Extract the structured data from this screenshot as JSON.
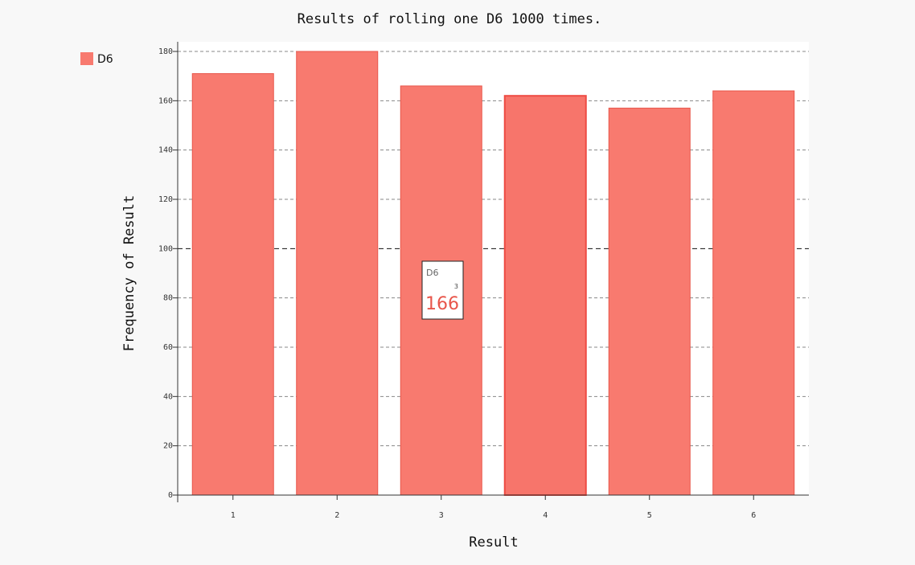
{
  "chart_data": {
    "type": "bar",
    "title": "Results of rolling one D6 1000 times.",
    "xlabel": "Result",
    "ylabel": "Frequency of Result",
    "categories": [
      "1",
      "2",
      "3",
      "4",
      "5",
      "6"
    ],
    "series": [
      {
        "name": "D6",
        "values": [
          171,
          180,
          166,
          162,
          157,
          164
        ],
        "color": "#f87a6f",
        "stroke": "#e8564b",
        "highlight_color": "#f7756b",
        "highlight_stroke": "#ee4b43"
      }
    ],
    "ylim": [
      0,
      180
    ],
    "yticks": [
      0,
      20,
      40,
      60,
      80,
      100,
      120,
      140,
      160,
      180
    ],
    "major_ytick": 100,
    "grid": true,
    "legend": "top-left",
    "highlighted_bar_index": 3,
    "tooltip": {
      "series": "D6",
      "x": "3",
      "value": "166",
      "value_color": "#e8564b"
    }
  }
}
